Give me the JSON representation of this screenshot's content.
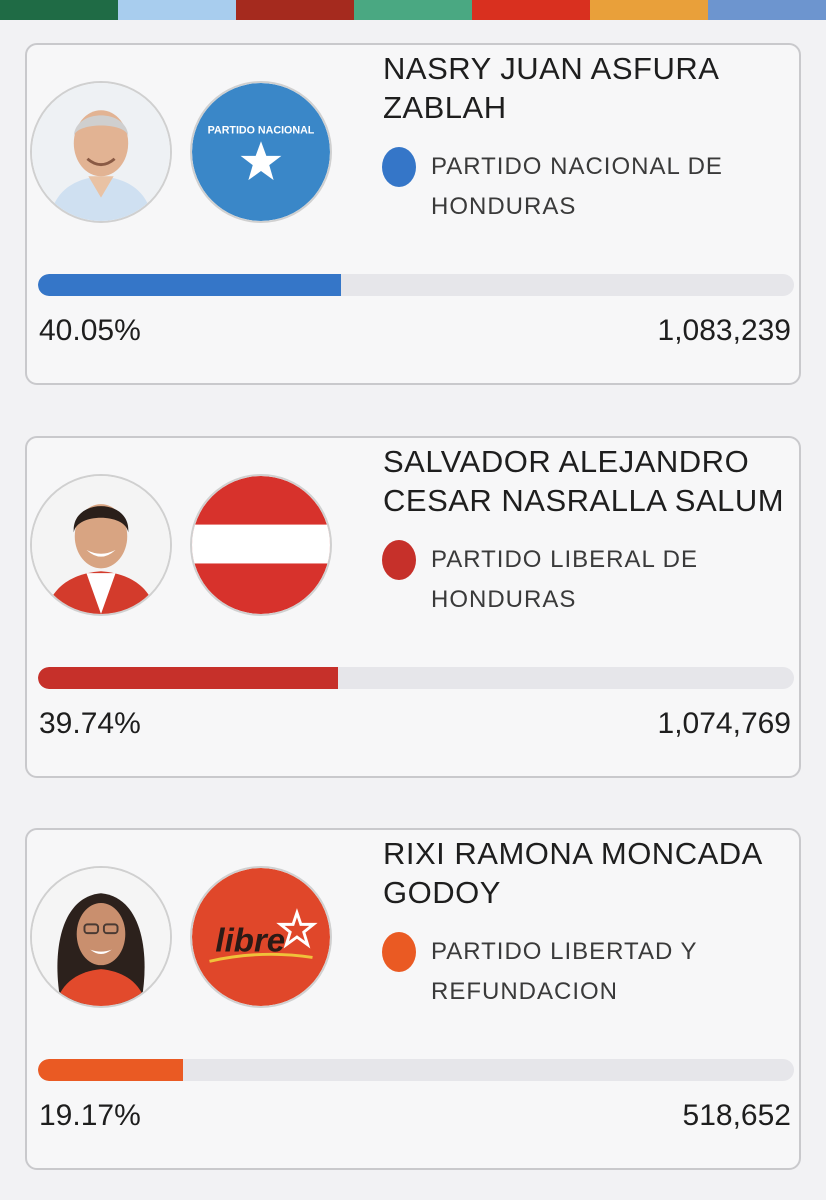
{
  "colors": {
    "top_bar": [
      "#1f6b45",
      "#a8cdee",
      "#a52a1e",
      "#4aa882",
      "#d9301f",
      "#e9a03a",
      "#6d95cf"
    ],
    "nacional": "#3576c8",
    "liberal": "#c6302a",
    "libre": "#ea5a23"
  },
  "candidates": [
    {
      "name": "NASRY JUAN ASFURA ZABLAH",
      "party": "PARTIDO NACIONAL DE HONDURAS",
      "logo_text": "PARTIDO NACIONAL",
      "percentage": "40.05%",
      "percent_value": 40.05,
      "votes": "1,083,239",
      "color": "#3576c8"
    },
    {
      "name": "SALVADOR ALEJANDRO CESAR NASRALLA SALUM",
      "party": "PARTIDO LIBERAL DE HONDURAS",
      "percentage": "39.74%",
      "percent_value": 39.74,
      "votes": "1,074,769",
      "color": "#c6302a"
    },
    {
      "name": "RIXI RAMONA MONCADA GODOY",
      "party": "PARTIDO LIBERTAD Y REFUNDACION",
      "logo_text": "libre",
      "percentage": "19.17%",
      "percent_value": 19.17,
      "votes": "518,652",
      "color": "#ea5a23"
    }
  ]
}
